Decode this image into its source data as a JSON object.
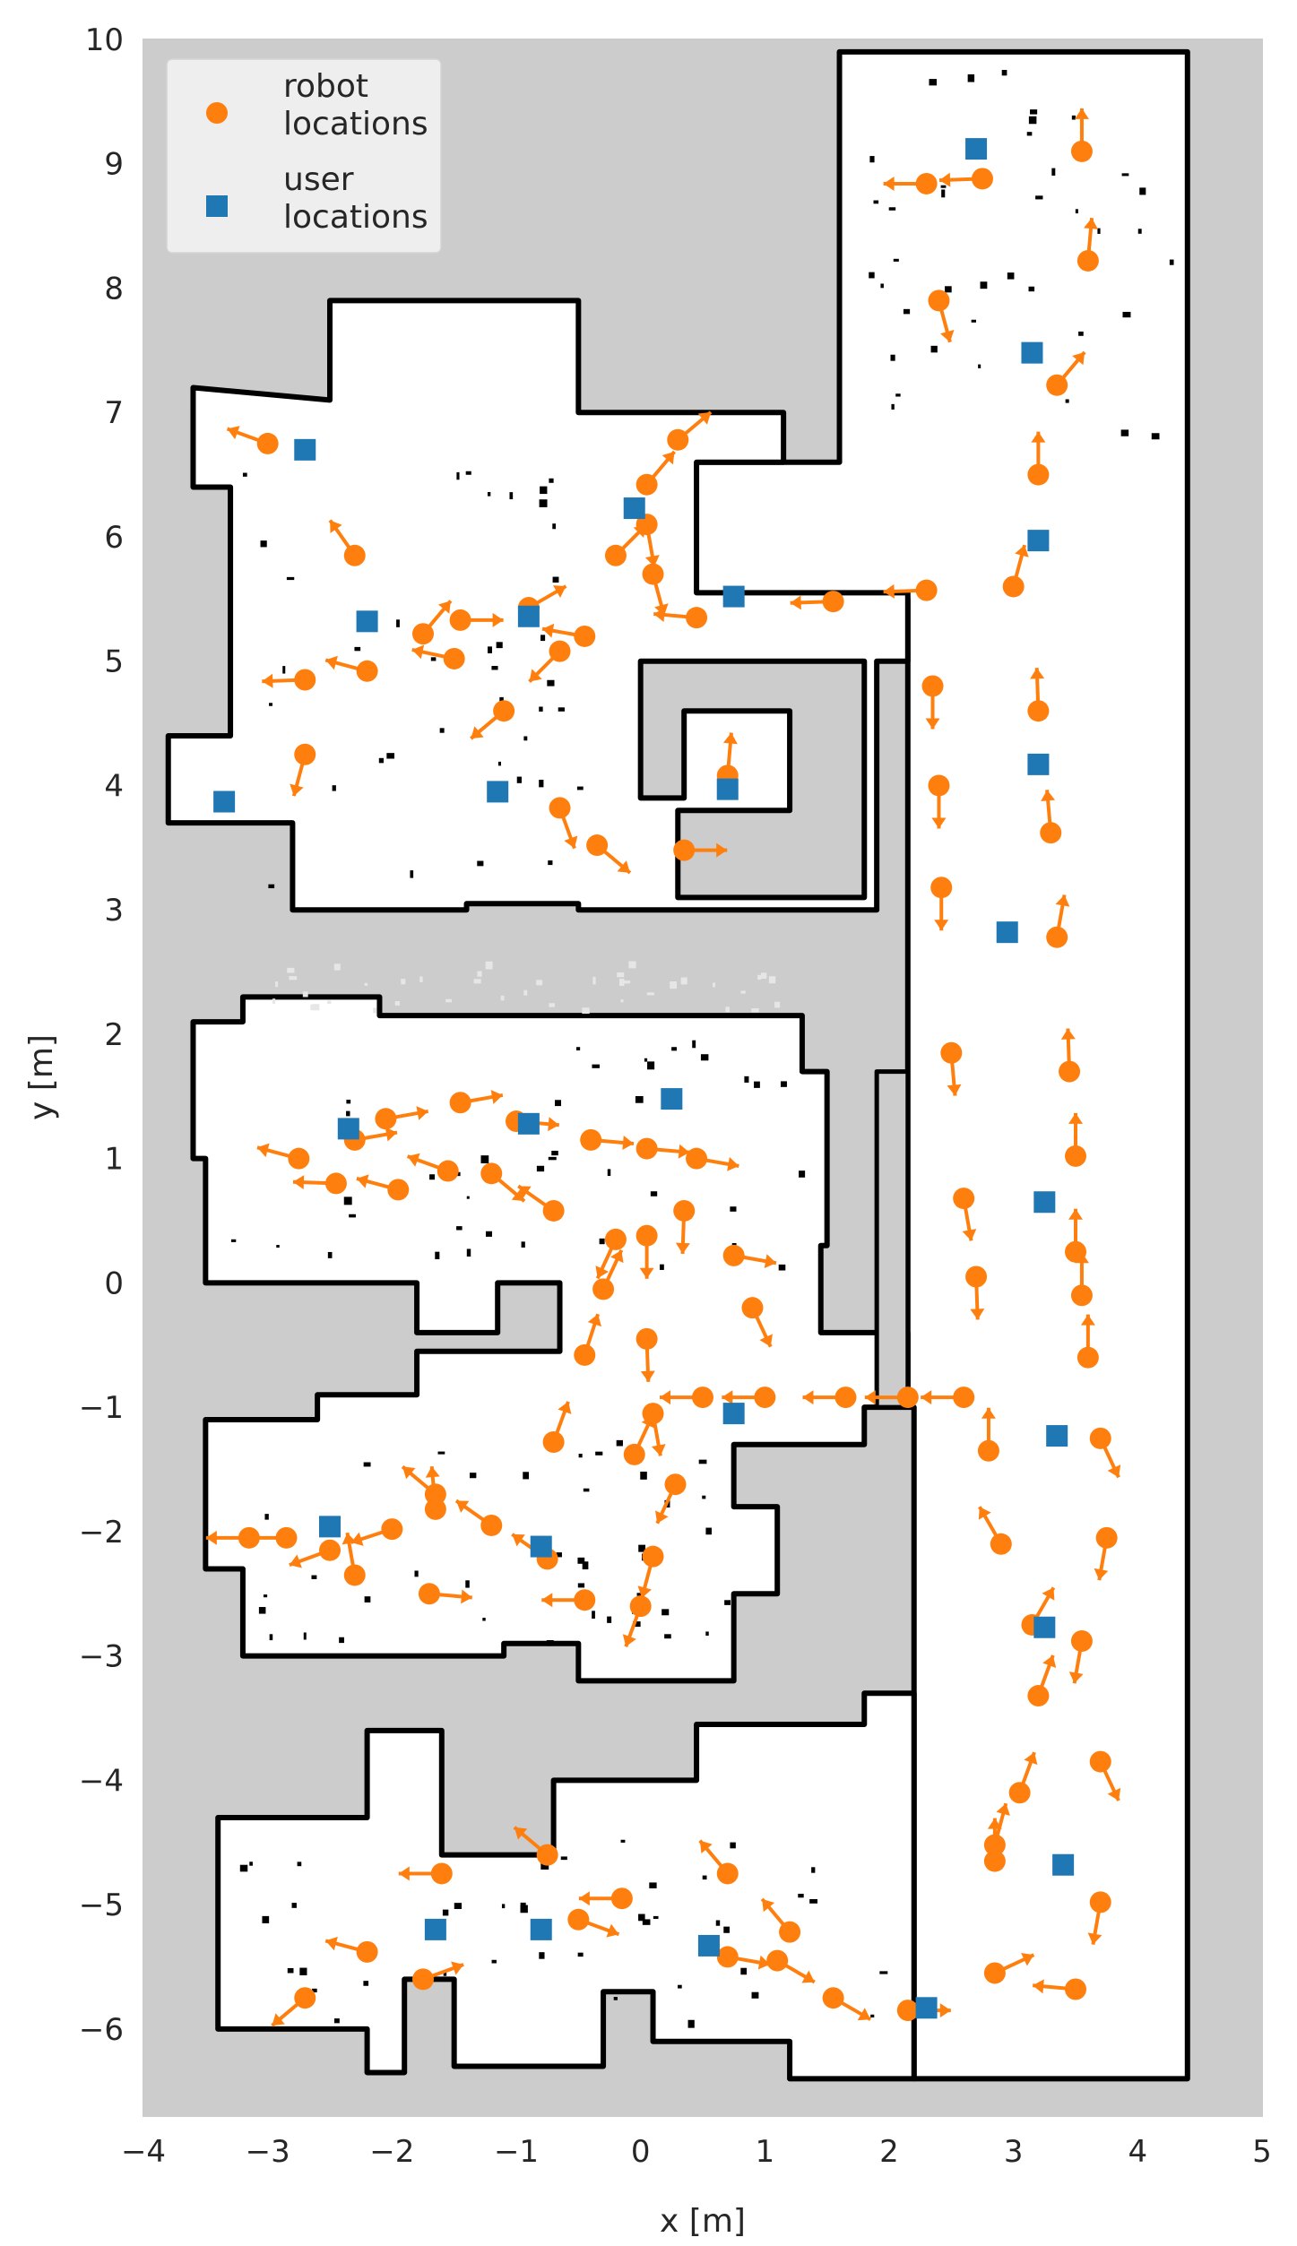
{
  "chart_data": {
    "type": "scatter",
    "xlabel": "x [m]",
    "ylabel": "y [m]",
    "xlim": [
      -4,
      5
    ],
    "ylim": [
      -6.7,
      10
    ],
    "xticks": [
      -4,
      -3,
      -2,
      -1,
      0,
      1,
      2,
      3,
      4,
      5
    ],
    "yticks": [
      -6,
      -5,
      -4,
      -3,
      -2,
      -1,
      0,
      1,
      2,
      3,
      4,
      5,
      6,
      7,
      8,
      9,
      10
    ],
    "xtick_labels": [
      "−4",
      "−3",
      "−2",
      "−1",
      "0",
      "1",
      "2",
      "3",
      "4",
      "5"
    ],
    "ytick_labels": [
      "−6",
      "−5",
      "−4",
      "−3",
      "−2",
      "−1",
      "0",
      "1",
      "2",
      "3",
      "4",
      "5",
      "6",
      "7",
      "8",
      "9",
      "10"
    ],
    "grid": false,
    "legend_position": "top-left",
    "background": "occupancy grid map (free = white, unknown = gray, obstacles = black)",
    "colors": {
      "robot": "#ff7f0e",
      "user": "#1f77b4",
      "unknown": "#cccccc",
      "free": "#ffffff",
      "obstacle": "#000000",
      "text": "#262626"
    },
    "series": [
      {
        "name": "robot\nlocations",
        "legend_lines": [
          "robot",
          "locations"
        ],
        "marker": "circle",
        "note": "each point has a short arrow indicating heading; heading in degrees",
        "points": [
          {
            "x": 2.75,
            "y": 8.88,
            "heading": 182
          },
          {
            "x": 2.3,
            "y": 8.84,
            "heading": 180
          },
          {
            "x": 3.55,
            "y": 9.1,
            "heading": 90
          },
          {
            "x": 3.6,
            "y": 8.22,
            "heading": 85
          },
          {
            "x": 2.4,
            "y": 7.9,
            "heading": -75
          },
          {
            "x": 3.35,
            "y": 7.22,
            "heading": 50
          },
          {
            "x": 3.2,
            "y": 6.5,
            "heading": 90
          },
          {
            "x": 3.0,
            "y": 5.6,
            "heading": 75
          },
          {
            "x": 2.3,
            "y": 5.57,
            "heading": 182
          },
          {
            "x": 1.55,
            "y": 5.48,
            "heading": 182
          },
          {
            "x": 2.35,
            "y": 4.8,
            "heading": -90
          },
          {
            "x": 3.2,
            "y": 4.6,
            "heading": 92
          },
          {
            "x": 2.4,
            "y": 4.0,
            "heading": -90
          },
          {
            "x": 3.3,
            "y": 3.62,
            "heading": 95
          },
          {
            "x": 2.42,
            "y": 3.18,
            "heading": -90
          },
          {
            "x": 3.35,
            "y": 2.78,
            "heading": 80
          },
          {
            "x": 2.5,
            "y": 1.85,
            "heading": -85
          },
          {
            "x": 3.45,
            "y": 1.7,
            "heading": 92
          },
          {
            "x": 3.5,
            "y": 1.02,
            "heading": 90
          },
          {
            "x": 2.6,
            "y": 0.68,
            "heading": -80
          },
          {
            "x": 3.5,
            "y": 0.25,
            "heading": 90
          },
          {
            "x": 2.7,
            "y": 0.05,
            "heading": -88
          },
          {
            "x": 3.55,
            "y": -0.1,
            "heading": 90
          },
          {
            "x": 3.6,
            "y": -0.6,
            "heading": 90
          },
          {
            "x": -3.0,
            "y": 6.75,
            "heading": 160
          },
          {
            "x": -2.3,
            "y": 5.85,
            "heading": 125
          },
          {
            "x": -2.7,
            "y": 4.85,
            "heading": 182
          },
          {
            "x": -2.2,
            "y": 4.92,
            "heading": 165
          },
          {
            "x": -1.5,
            "y": 5.02,
            "heading": 168
          },
          {
            "x": -1.75,
            "y": 5.22,
            "heading": 50
          },
          {
            "x": -1.45,
            "y": 5.33,
            "heading": 0
          },
          {
            "x": -0.9,
            "y": 5.43,
            "heading": 30
          },
          {
            "x": -0.45,
            "y": 5.2,
            "heading": 170
          },
          {
            "x": -0.65,
            "y": 5.08,
            "heading": -135
          },
          {
            "x": -1.1,
            "y": 4.6,
            "heading": -140
          },
          {
            "x": -2.7,
            "y": 4.25,
            "heading": -105
          },
          {
            "x": 0.05,
            "y": 6.42,
            "heading": 50
          },
          {
            "x": 0.3,
            "y": 6.78,
            "heading": 40
          },
          {
            "x": -0.2,
            "y": 5.85,
            "heading": 45
          },
          {
            "x": 0.05,
            "y": 6.1,
            "heading": -80
          },
          {
            "x": 0.1,
            "y": 5.7,
            "heading": -75
          },
          {
            "x": 0.45,
            "y": 5.35,
            "heading": 175
          },
          {
            "x": 0.7,
            "y": 4.08,
            "heading": 85
          },
          {
            "x": -0.65,
            "y": 3.82,
            "heading": -70
          },
          {
            "x": -0.35,
            "y": 3.52,
            "heading": -40
          },
          {
            "x": 0.35,
            "y": 3.48,
            "heading": 0
          },
          {
            "x": -2.75,
            "y": 1.0,
            "heading": 165
          },
          {
            "x": -2.45,
            "y": 0.8,
            "heading": 178
          },
          {
            "x": -2.3,
            "y": 1.15,
            "heading": 10
          },
          {
            "x": -2.05,
            "y": 1.32,
            "heading": 10
          },
          {
            "x": -1.45,
            "y": 1.45,
            "heading": 10
          },
          {
            "x": -1.0,
            "y": 1.3,
            "heading": -5
          },
          {
            "x": -0.4,
            "y": 1.15,
            "heading": -5
          },
          {
            "x": 0.05,
            "y": 1.08,
            "heading": -5
          },
          {
            "x": 0.45,
            "y": 1.0,
            "heading": -10
          },
          {
            "x": -1.55,
            "y": 0.9,
            "heading": 160
          },
          {
            "x": -1.2,
            "y": 0.88,
            "heading": -40
          },
          {
            "x": -1.95,
            "y": 0.75,
            "heading": 165
          },
          {
            "x": -0.7,
            "y": 0.58,
            "heading": 145
          },
          {
            "x": 0.05,
            "y": 0.38,
            "heading": -90
          },
          {
            "x": 0.35,
            "y": 0.58,
            "heading": -92
          },
          {
            "x": -0.2,
            "y": 0.35,
            "heading": -115
          },
          {
            "x": -0.3,
            "y": -0.05,
            "heading": 65
          },
          {
            "x": 0.05,
            "y": -0.45,
            "heading": -88
          },
          {
            "x": -0.45,
            "y": -0.58,
            "heading": 72
          },
          {
            "x": 0.75,
            "y": 0.22,
            "heading": -10
          },
          {
            "x": 0.9,
            "y": -0.2,
            "heading": -65
          },
          {
            "x": 1.65,
            "y": -0.92,
            "heading": 180
          },
          {
            "x": 2.15,
            "y": -0.92,
            "heading": 180
          },
          {
            "x": 2.6,
            "y": -0.92,
            "heading": 180
          },
          {
            "x": 1.0,
            "y": -0.92,
            "heading": 180
          },
          {
            "x": 0.5,
            "y": -0.92,
            "heading": 180
          },
          {
            "x": 0.1,
            "y": -1.05,
            "heading": -80
          },
          {
            "x": 2.8,
            "y": -1.35,
            "heading": 90
          },
          {
            "x": 3.7,
            "y": -1.25,
            "heading": -65
          },
          {
            "x": 2.9,
            "y": -2.1,
            "heading": 120
          },
          {
            "x": 3.75,
            "y": -2.05,
            "heading": -100
          },
          {
            "x": -0.7,
            "y": -1.28,
            "heading": 70
          },
          {
            "x": -0.05,
            "y": -1.38,
            "heading": 65
          },
          {
            "x": 0.28,
            "y": -1.62,
            "heading": -115
          },
          {
            "x": -0.45,
            "y": -2.55,
            "heading": 180
          },
          {
            "x": 0.1,
            "y": -2.2,
            "heading": -105
          },
          {
            "x": 0.0,
            "y": -2.6,
            "heading": -110
          },
          {
            "x": -3.15,
            "y": -2.05,
            "heading": 180
          },
          {
            "x": -2.85,
            "y": -2.05,
            "heading": 180
          },
          {
            "x": -2.5,
            "y": -2.15,
            "heading": -160
          },
          {
            "x": -2.3,
            "y": -2.35,
            "heading": 100
          },
          {
            "x": -2.0,
            "y": -1.98,
            "heading": -162
          },
          {
            "x": -1.65,
            "y": -1.7,
            "heading": 140
          },
          {
            "x": -1.65,
            "y": -1.82,
            "heading": 95
          },
          {
            "x": -1.2,
            "y": -1.95,
            "heading": 145
          },
          {
            "x": -0.75,
            "y": -2.22,
            "heading": 145
          },
          {
            "x": -1.7,
            "y": -2.5,
            "heading": -5
          },
          {
            "x": 3.2,
            "y": -3.32,
            "heading": 70
          },
          {
            "x": 3.55,
            "y": -2.88,
            "heading": -100
          },
          {
            "x": 3.15,
            "y": -2.75,
            "heading": 60
          },
          {
            "x": 3.05,
            "y": -4.1,
            "heading": 70
          },
          {
            "x": 3.7,
            "y": -3.85,
            "heading": -65
          },
          {
            "x": 2.85,
            "y": -4.52,
            "heading": 75
          },
          {
            "x": 2.85,
            "y": -4.65,
            "heading": 90
          },
          {
            "x": 3.7,
            "y": -4.98,
            "heading": -100
          },
          {
            "x": 2.85,
            "y": -5.55,
            "heading": 25
          },
          {
            "x": 3.5,
            "y": -5.68,
            "heading": 175
          },
          {
            "x": -0.75,
            "y": -4.6,
            "heading": 140
          },
          {
            "x": -1.6,
            "y": -4.75,
            "heading": 180
          },
          {
            "x": 0.7,
            "y": -4.75,
            "heading": 130
          },
          {
            "x": -0.15,
            "y": -4.95,
            "heading": 180
          },
          {
            "x": -0.5,
            "y": -5.12,
            "heading": -20
          },
          {
            "x": 1.2,
            "y": -5.22,
            "heading": 130
          },
          {
            "x": -2.2,
            "y": -5.38,
            "heading": 165
          },
          {
            "x": -1.75,
            "y": -5.6,
            "heading": 20
          },
          {
            "x": 0.7,
            "y": -5.42,
            "heading": -10
          },
          {
            "x": 1.1,
            "y": -5.45,
            "heading": -30
          },
          {
            "x": 1.55,
            "y": -5.75,
            "heading": -30
          },
          {
            "x": 2.15,
            "y": -5.85,
            "heading": 0
          },
          {
            "x": -2.7,
            "y": -5.75,
            "heading": -140
          }
        ]
      },
      {
        "name": "user\nlocations",
        "legend_lines": [
          "user",
          "locations"
        ],
        "marker": "square",
        "points": [
          {
            "x": 2.7,
            "y": 9.12
          },
          {
            "x": 3.15,
            "y": 7.48
          },
          {
            "x": -2.7,
            "y": 6.7
          },
          {
            "x": -0.05,
            "y": 6.23
          },
          {
            "x": 3.2,
            "y": 5.97
          },
          {
            "x": 0.75,
            "y": 5.52
          },
          {
            "x": -2.2,
            "y": 5.32
          },
          {
            "x": -0.9,
            "y": 5.36
          },
          {
            "x": 3.2,
            "y": 4.17
          },
          {
            "x": -3.35,
            "y": 3.87
          },
          {
            "x": -1.15,
            "y": 3.95
          },
          {
            "x": 0.7,
            "y": 3.97
          },
          {
            "x": 2.95,
            "y": 2.82
          },
          {
            "x": 0.25,
            "y": 1.48
          },
          {
            "x": -2.35,
            "y": 1.24
          },
          {
            "x": -0.9,
            "y": 1.28
          },
          {
            "x": 3.25,
            "y": 0.65
          },
          {
            "x": 0.75,
            "y": -1.05
          },
          {
            "x": 3.35,
            "y": -1.23
          },
          {
            "x": -2.5,
            "y": -1.96
          },
          {
            "x": -0.8,
            "y": -2.12
          },
          {
            "x": 3.25,
            "y": -2.77
          },
          {
            "x": 3.4,
            "y": -4.68
          },
          {
            "x": -1.65,
            "y": -5.2
          },
          {
            "x": -0.8,
            "y": -5.2
          },
          {
            "x": 0.55,
            "y": -5.33
          },
          {
            "x": 2.3,
            "y": -5.83
          }
        ]
      }
    ]
  }
}
